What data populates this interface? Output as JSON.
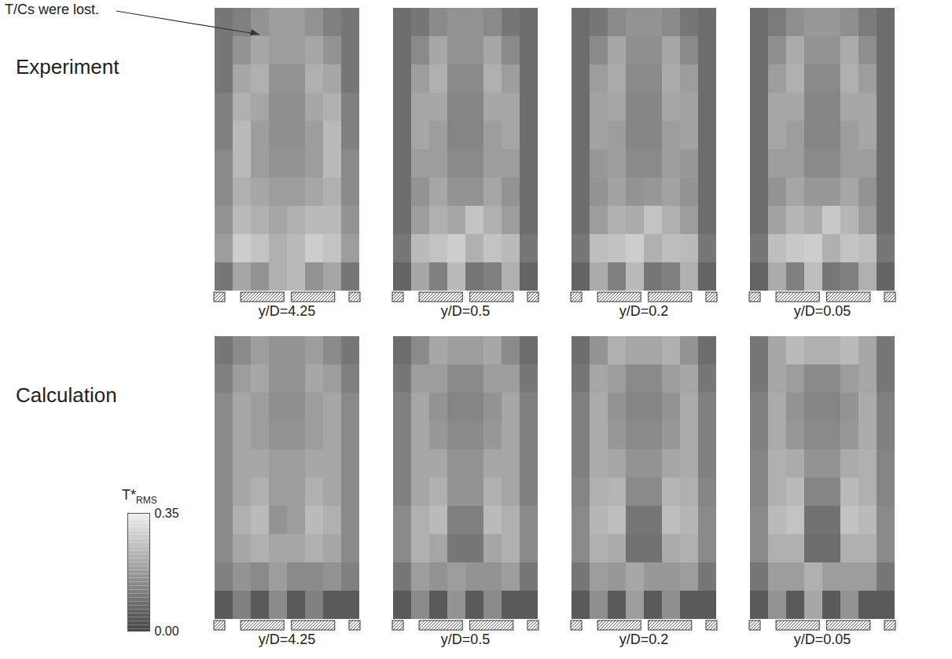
{
  "chart_data": {
    "type": "heatmap",
    "annotations": [
      {
        "text": "T/Cs were lost."
      }
    ],
    "colorbar": {
      "label": "T*",
      "label_subscript": "RMS",
      "range": [
        0,
        0.35
      ],
      "ticks": [
        {
          "value": 0,
          "label": "0.00"
        },
        0.35
      ]
    },
    "tick_labels": false,
    "panel_rows": [
      {
        "label": "Experiment",
        "panels": [
          {
            "title": "y/D=4.25",
            "cells": [
              [
                0.1,
                0.12,
                0.16,
                0.18,
                0.18,
                0.16,
                0.12,
                0.1
              ],
              [
                0.1,
                0.16,
                0.2,
                0.18,
                0.18,
                0.2,
                0.16,
                0.1
              ],
              [
                0.1,
                0.2,
                0.22,
                0.16,
                0.16,
                0.22,
                0.2,
                0.1
              ],
              [
                0.12,
                0.22,
                0.2,
                0.15,
                0.15,
                0.2,
                0.22,
                0.12
              ],
              [
                0.12,
                0.24,
                0.18,
                0.15,
                0.15,
                0.18,
                0.24,
                0.12
              ],
              [
                0.14,
                0.24,
                0.18,
                0.16,
                0.16,
                0.18,
                0.24,
                0.14
              ],
              [
                0.14,
                0.22,
                0.2,
                0.18,
                0.18,
                0.2,
                0.22,
                0.14
              ],
              [
                0.16,
                0.24,
                0.22,
                0.2,
                0.22,
                0.24,
                0.24,
                0.16
              ],
              [
                0.18,
                0.28,
                0.26,
                0.22,
                0.24,
                0.28,
                0.26,
                0.18
              ],
              [
                0.1,
                0.2,
                0.16,
                0.22,
                0.24,
                0.16,
                0.2,
                0.1
              ]
            ]
          },
          {
            "title": "y/D=0.5",
            "cells": [
              [
                0.08,
                0.1,
                0.14,
                0.16,
                0.16,
                0.14,
                0.1,
                0.08
              ],
              [
                0.08,
                0.14,
                0.2,
                0.16,
                0.16,
                0.2,
                0.14,
                0.08
              ],
              [
                0.08,
                0.18,
                0.22,
                0.14,
                0.14,
                0.22,
                0.18,
                0.08
              ],
              [
                0.08,
                0.2,
                0.2,
                0.13,
                0.13,
                0.2,
                0.2,
                0.08
              ],
              [
                0.08,
                0.2,
                0.18,
                0.13,
                0.13,
                0.18,
                0.2,
                0.08
              ],
              [
                0.08,
                0.18,
                0.18,
                0.14,
                0.14,
                0.18,
                0.18,
                0.08
              ],
              [
                0.08,
                0.16,
                0.2,
                0.16,
                0.16,
                0.2,
                0.16,
                0.08
              ],
              [
                0.08,
                0.18,
                0.22,
                0.2,
                0.26,
                0.22,
                0.18,
                0.08
              ],
              [
                0.1,
                0.24,
                0.26,
                0.28,
                0.22,
                0.26,
                0.24,
                0.1
              ],
              [
                0.06,
                0.2,
                0.12,
                0.24,
                0.1,
                0.12,
                0.22,
                0.06
              ]
            ]
          },
          {
            "title": "y/D=0.2",
            "cells": [
              [
                0.08,
                0.1,
                0.14,
                0.16,
                0.16,
                0.14,
                0.1,
                0.08
              ],
              [
                0.08,
                0.14,
                0.2,
                0.15,
                0.15,
                0.2,
                0.14,
                0.08
              ],
              [
                0.08,
                0.18,
                0.21,
                0.14,
                0.14,
                0.21,
                0.18,
                0.08
              ],
              [
                0.08,
                0.19,
                0.2,
                0.13,
                0.13,
                0.2,
                0.19,
                0.08
              ],
              [
                0.08,
                0.19,
                0.18,
                0.13,
                0.13,
                0.18,
                0.19,
                0.08
              ],
              [
                0.08,
                0.17,
                0.18,
                0.14,
                0.14,
                0.18,
                0.17,
                0.08
              ],
              [
                0.08,
                0.16,
                0.19,
                0.16,
                0.17,
                0.19,
                0.16,
                0.08
              ],
              [
                0.08,
                0.18,
                0.22,
                0.21,
                0.26,
                0.22,
                0.18,
                0.08
              ],
              [
                0.1,
                0.25,
                0.26,
                0.28,
                0.22,
                0.25,
                0.24,
                0.1
              ],
              [
                0.06,
                0.21,
                0.12,
                0.24,
                0.1,
                0.12,
                0.22,
                0.06
              ]
            ]
          },
          {
            "title": "y/D=0.05",
            "cells": [
              [
                0.08,
                0.11,
                0.15,
                0.17,
                0.17,
                0.15,
                0.11,
                0.08
              ],
              [
                0.08,
                0.15,
                0.21,
                0.16,
                0.16,
                0.21,
                0.15,
                0.08
              ],
              [
                0.08,
                0.18,
                0.22,
                0.14,
                0.14,
                0.22,
                0.18,
                0.08
              ],
              [
                0.08,
                0.2,
                0.2,
                0.13,
                0.13,
                0.2,
                0.2,
                0.08
              ],
              [
                0.08,
                0.2,
                0.18,
                0.13,
                0.13,
                0.18,
                0.2,
                0.08
              ],
              [
                0.08,
                0.18,
                0.18,
                0.14,
                0.14,
                0.18,
                0.18,
                0.08
              ],
              [
                0.08,
                0.16,
                0.2,
                0.17,
                0.17,
                0.2,
                0.16,
                0.08
              ],
              [
                0.08,
                0.19,
                0.23,
                0.21,
                0.27,
                0.23,
                0.18,
                0.08
              ],
              [
                0.1,
                0.25,
                0.27,
                0.28,
                0.22,
                0.26,
                0.25,
                0.1
              ],
              [
                0.06,
                0.21,
                0.12,
                0.25,
                0.1,
                0.12,
                0.22,
                0.06
              ]
            ]
          }
        ]
      },
      {
        "label": "Calculation",
        "panels": [
          {
            "title": "y/D=4.25",
            "cells": [
              [
                0.1,
                0.14,
                0.18,
                0.16,
                0.16,
                0.18,
                0.14,
                0.1
              ],
              [
                0.12,
                0.18,
                0.2,
                0.16,
                0.16,
                0.2,
                0.18,
                0.12
              ],
              [
                0.14,
                0.2,
                0.18,
                0.15,
                0.15,
                0.18,
                0.2,
                0.14
              ],
              [
                0.14,
                0.2,
                0.18,
                0.16,
                0.16,
                0.18,
                0.2,
                0.14
              ],
              [
                0.14,
                0.2,
                0.2,
                0.18,
                0.18,
                0.2,
                0.2,
                0.14
              ],
              [
                0.14,
                0.2,
                0.22,
                0.18,
                0.18,
                0.22,
                0.2,
                0.14
              ],
              [
                0.14,
                0.22,
                0.24,
                0.16,
                0.18,
                0.24,
                0.22,
                0.14
              ],
              [
                0.14,
                0.2,
                0.22,
                0.2,
                0.2,
                0.22,
                0.2,
                0.14
              ],
              [
                0.12,
                0.16,
                0.14,
                0.18,
                0.14,
                0.14,
                0.16,
                0.12
              ],
              [
                0.04,
                0.12,
                0.04,
                0.14,
                0.04,
                0.12,
                0.04,
                0.04
              ]
            ]
          },
          {
            "title": "y/D=0.5",
            "cells": [
              [
                0.08,
                0.14,
                0.2,
                0.18,
                0.18,
                0.2,
                0.14,
                0.08
              ],
              [
                0.1,
                0.18,
                0.18,
                0.14,
                0.14,
                0.18,
                0.18,
                0.1
              ],
              [
                0.12,
                0.2,
                0.16,
                0.13,
                0.13,
                0.16,
                0.2,
                0.12
              ],
              [
                0.12,
                0.2,
                0.17,
                0.14,
                0.14,
                0.17,
                0.2,
                0.12
              ],
              [
                0.12,
                0.2,
                0.2,
                0.16,
                0.16,
                0.2,
                0.2,
                0.12
              ],
              [
                0.12,
                0.2,
                0.22,
                0.16,
                0.16,
                0.22,
                0.2,
                0.12
              ],
              [
                0.14,
                0.22,
                0.24,
                0.12,
                0.12,
                0.24,
                0.22,
                0.14
              ],
              [
                0.14,
                0.22,
                0.2,
                0.1,
                0.1,
                0.2,
                0.22,
                0.14
              ],
              [
                0.1,
                0.18,
                0.16,
                0.18,
                0.16,
                0.16,
                0.18,
                0.1
              ],
              [
                0.04,
                0.14,
                0.04,
                0.16,
                0.04,
                0.14,
                0.04,
                0.04
              ]
            ]
          },
          {
            "title": "y/D=0.2",
            "cells": [
              [
                0.08,
                0.16,
                0.22,
                0.2,
                0.2,
                0.22,
                0.16,
                0.08
              ],
              [
                0.1,
                0.2,
                0.18,
                0.14,
                0.14,
                0.18,
                0.2,
                0.1
              ],
              [
                0.12,
                0.21,
                0.16,
                0.13,
                0.13,
                0.16,
                0.21,
                0.12
              ],
              [
                0.12,
                0.21,
                0.17,
                0.14,
                0.14,
                0.17,
                0.21,
                0.12
              ],
              [
                0.12,
                0.21,
                0.2,
                0.16,
                0.16,
                0.2,
                0.21,
                0.12
              ],
              [
                0.13,
                0.22,
                0.23,
                0.14,
                0.14,
                0.23,
                0.22,
                0.13
              ],
              [
                0.14,
                0.23,
                0.25,
                0.1,
                0.1,
                0.25,
                0.23,
                0.14
              ],
              [
                0.14,
                0.22,
                0.21,
                0.09,
                0.09,
                0.21,
                0.22,
                0.14
              ],
              [
                0.1,
                0.18,
                0.17,
                0.2,
                0.17,
                0.17,
                0.18,
                0.1
              ],
              [
                0.04,
                0.15,
                0.04,
                0.18,
                0.04,
                0.15,
                0.04,
                0.04
              ]
            ]
          },
          {
            "title": "y/D=0.05",
            "cells": [
              [
                0.1,
                0.2,
                0.24,
                0.22,
                0.22,
                0.24,
                0.2,
                0.1
              ],
              [
                0.1,
                0.2,
                0.18,
                0.14,
                0.14,
                0.18,
                0.2,
                0.1
              ],
              [
                0.12,
                0.21,
                0.16,
                0.13,
                0.13,
                0.16,
                0.21,
                0.12
              ],
              [
                0.12,
                0.21,
                0.17,
                0.14,
                0.14,
                0.17,
                0.21,
                0.12
              ],
              [
                0.13,
                0.22,
                0.21,
                0.16,
                0.16,
                0.21,
                0.22,
                0.13
              ],
              [
                0.13,
                0.22,
                0.24,
                0.13,
                0.13,
                0.24,
                0.22,
                0.13
              ],
              [
                0.14,
                0.24,
                0.26,
                0.09,
                0.09,
                0.26,
                0.24,
                0.14
              ],
              [
                0.14,
                0.22,
                0.22,
                0.08,
                0.08,
                0.22,
                0.22,
                0.14
              ],
              [
                0.1,
                0.18,
                0.18,
                0.22,
                0.18,
                0.18,
                0.18,
                0.1
              ],
              [
                0.04,
                0.16,
                0.04,
                0.2,
                0.04,
                0.16,
                0.04,
                0.04
              ]
            ]
          }
        ]
      }
    ]
  }
}
